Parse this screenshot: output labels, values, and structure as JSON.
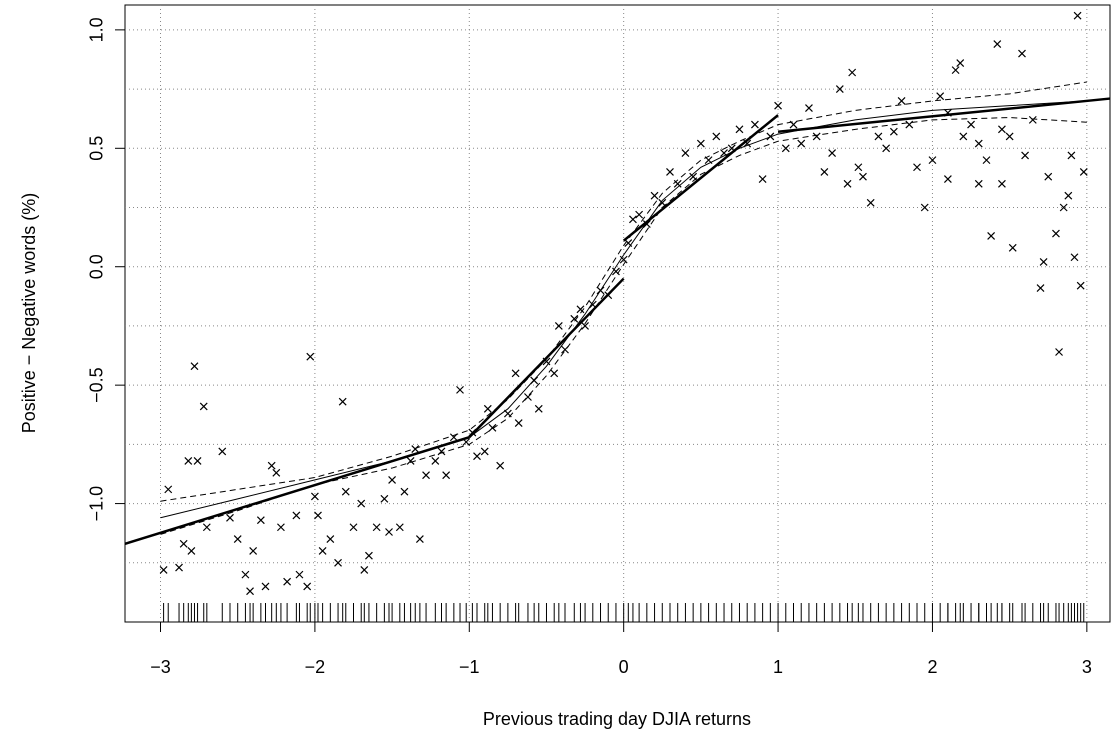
{
  "chart_data": {
    "type": "scatter",
    "x_label": "Previous trading day DJIA returns",
    "y_label": "Positive − Negative words (%)",
    "xlim": [
      -3.23,
      3.15
    ],
    "ylim": [
      -1.5,
      1.105
    ],
    "xticks": [
      {
        "value": -3,
        "label": "−3"
      },
      {
        "value": -2,
        "label": "−2"
      },
      {
        "value": -1,
        "label": "−1"
      },
      0,
      1,
      2,
      3
    ],
    "yticks": [
      {
        "value": -1,
        "label": "−1.0"
      },
      {
        "value": -0.5,
        "label": "−0.5"
      },
      {
        "value": 0,
        "label": "0.0"
      },
      {
        "value": 0.5,
        "label": "0.5"
      },
      {
        "value": 1,
        "label": "1.0"
      }
    ],
    "grid": true,
    "xgrid": [
      -3,
      -2,
      -1,
      0,
      1,
      2,
      3
    ],
    "ygrid": [
      -1.25,
      -1,
      -0.75,
      -0.5,
      -0.25,
      0,
      0.25,
      0.5,
      0.75,
      1
    ],
    "rug": true,
    "color": "#000000",
    "points": {
      "x": [
        -2.98,
        -2.95,
        -2.88,
        -2.85,
        -2.82,
        -2.78,
        -2.76,
        -2.72,
        -2.8,
        -2.7,
        -2.6,
        -2.55,
        -2.5,
        -2.45,
        -2.42,
        -2.4,
        -2.35,
        -2.32,
        -2.28,
        -2.25,
        -2.22,
        -2.18,
        -2.12,
        -2.1,
        -2.05,
        -2.03,
        -2,
        -1.98,
        -1.95,
        -1.9,
        -1.85,
        -1.82,
        -1.8,
        -1.75,
        -1.7,
        -1.68,
        -1.65,
        -1.6,
        -1.55,
        -1.52,
        -1.5,
        -1.45,
        -1.42,
        -1.38,
        -1.35,
        -1.32,
        -1.28,
        -1.22,
        -1.18,
        -1.15,
        -1.1,
        -1.06,
        -1.02,
        -0.98,
        -0.95,
        -0.9,
        -0.88,
        -0.85,
        -0.8,
        -0.75,
        -0.7,
        -0.68,
        -0.62,
        -0.58,
        -0.55,
        -0.5,
        -0.45,
        -0.42,
        -0.38,
        -0.32,
        -0.28,
        -0.25,
        -0.2,
        -0.15,
        -0.1,
        -0.05,
        0,
        0.03,
        0.06,
        0.1,
        0.15,
        0.2,
        0.25,
        0.3,
        0.35,
        0.4,
        0.45,
        0.5,
        0.55,
        0.6,
        0.65,
        0.7,
        0.75,
        0.8,
        0.85,
        0.9,
        0.95,
        1.0,
        1.05,
        1.1,
        1.15,
        1.2,
        1.25,
        1.3,
        1.35,
        1.4,
        1.45,
        1.48,
        1.52,
        1.55,
        1.6,
        1.65,
        1.7,
        1.75,
        1.8,
        1.85,
        1.9,
        1.95,
        2.0,
        2.05,
        2.1,
        2.15,
        2.18,
        2.2,
        2.25,
        2.3,
        2.35,
        2.38,
        2.42,
        2.45,
        2.5,
        2.52,
        2.58,
        2.6,
        2.65,
        2.7,
        2.72,
        2.75,
        2.8,
        2.82,
        2.85,
        2.9,
        2.92,
        2.94,
        2.96,
        2.98,
        2.45,
        2.1,
        2.3,
        2.88
      ],
      "y": [
        -1.28,
        -0.94,
        -1.27,
        -1.17,
        -0.82,
        -0.42,
        -0.82,
        -0.59,
        -1.2,
        -1.1,
        -0.78,
        -1.06,
        -1.15,
        -1.3,
        -1.37,
        -1.2,
        -1.07,
        -1.35,
        -0.84,
        -0.87,
        -1.1,
        -1.33,
        -1.05,
        -1.3,
        -1.35,
        -0.38,
        -0.97,
        -1.05,
        -1.2,
        -1.15,
        -1.25,
        -0.57,
        -0.95,
        -1.1,
        -1.0,
        -1.28,
        -1.22,
        -1.1,
        -0.98,
        -1.12,
        -0.9,
        -1.1,
        -0.95,
        -0.82,
        -0.77,
        -1.15,
        -0.88,
        -0.82,
        -0.78,
        -0.88,
        -0.72,
        -0.52,
        -0.74,
        -0.7,
        -0.8,
        -0.78,
        -0.6,
        -0.68,
        -0.84,
        -0.62,
        -0.45,
        -0.66,
        -0.55,
        -0.48,
        -0.6,
        -0.4,
        -0.45,
        -0.25,
        -0.35,
        -0.22,
        -0.18,
        -0.25,
        -0.16,
        -0.1,
        -0.12,
        -0.02,
        0.03,
        0.1,
        0.2,
        0.22,
        0.18,
        0.3,
        0.27,
        0.4,
        0.35,
        0.48,
        0.38,
        0.52,
        0.45,
        0.55,
        0.48,
        0.5,
        0.58,
        0.52,
        0.6,
        0.37,
        0.55,
        0.68,
        0.5,
        0.6,
        0.52,
        0.67,
        0.55,
        0.4,
        0.48,
        0.75,
        0.35,
        0.82,
        0.42,
        0.38,
        0.27,
        0.55,
        0.5,
        0.57,
        0.7,
        0.6,
        0.42,
        0.25,
        0.45,
        0.72,
        0.37,
        0.83,
        0.86,
        0.55,
        0.6,
        0.52,
        0.45,
        0.13,
        0.94,
        0.35,
        0.55,
        0.08,
        0.9,
        0.47,
        0.62,
        -0.09,
        0.02,
        0.38,
        0.14,
        -0.36,
        0.25,
        0.47,
        0.04,
        1.06,
        -0.08,
        0.4,
        0.58,
        0.65,
        0.35,
        0.3
      ]
    },
    "lines": [
      {
        "style": "solid",
        "width": 1,
        "x": [
          -3,
          -2.5,
          -2,
          -1.5,
          -1,
          -0.75,
          -0.5,
          -0.25,
          0,
          0.25,
          0.5,
          0.75,
          1,
          1.5,
          2,
          2.5,
          3
        ],
        "y": [
          -1.06,
          -0.98,
          -0.9,
          -0.82,
          -0.72,
          -0.6,
          -0.42,
          -0.2,
          0.05,
          0.28,
          0.42,
          0.5,
          0.56,
          0.62,
          0.66,
          0.68,
          0.7
        ]
      },
      {
        "style": "dashed",
        "width": 1,
        "x": [
          -3,
          -2.5,
          -2,
          -1.5,
          -1,
          -0.75,
          -0.5,
          -0.25,
          0,
          0.25,
          0.5,
          0.75,
          1,
          1.5,
          2,
          2.5,
          3
        ],
        "y": [
          -0.99,
          -0.94,
          -0.89,
          -0.8,
          -0.69,
          -0.56,
          -0.39,
          -0.17,
          0.09,
          0.31,
          0.45,
          0.53,
          0.6,
          0.66,
          0.7,
          0.73,
          0.78
        ]
      },
      {
        "style": "dashed",
        "width": 1,
        "x": [
          -3,
          -2.5,
          -2,
          -1.5,
          -1,
          -0.75,
          -0.5,
          -0.25,
          0,
          0.25,
          0.5,
          0.75,
          1,
          1.5,
          2,
          2.5,
          3
        ],
        "y": [
          -1.13,
          -1.03,
          -0.92,
          -0.85,
          -0.75,
          -0.64,
          -0.46,
          -0.24,
          0.01,
          0.25,
          0.39,
          0.47,
          0.53,
          0.58,
          0.62,
          0.63,
          0.61
        ]
      },
      {
        "style": "solid",
        "width": 2.5,
        "x": [
          -3.23,
          -1,
          null,
          -1,
          0,
          null,
          0,
          1,
          null,
          1,
          3.15
        ],
        "y": [
          -1.17,
          -0.72,
          null,
          -0.72,
          -0.05,
          null,
          0.11,
          0.64,
          null,
          0.57,
          0.71
        ]
      }
    ]
  }
}
